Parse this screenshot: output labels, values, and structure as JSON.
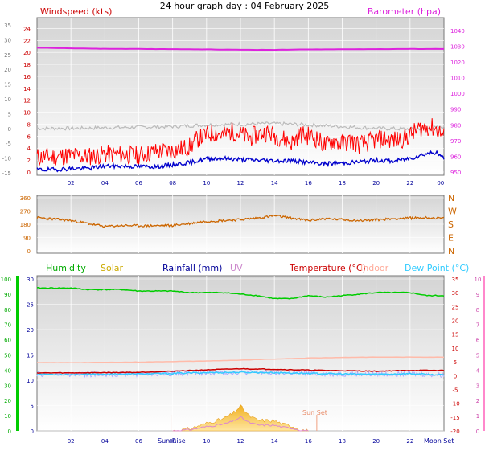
{
  "title": "24 hour graph day : 04 February 2025",
  "colors": {
    "wind": "#ff0000",
    "wind_avg": "#0000cc",
    "baro": "#dd22dd",
    "gust_gray": "#bbbbbb",
    "direction": "#cc6600",
    "humidity": "#00cc00",
    "solar": "#ccaa00",
    "rain": "#000099",
    "uv": "#cc88cc",
    "temperature": "#cc0000",
    "indoor": "#ffbbaa",
    "dew": "#33ccff"
  },
  "chart_data": [
    {
      "type": "line",
      "panel": "wind-baro",
      "labels": {
        "left": "Windspeed (kts)",
        "right": "Barometer (hpa)"
      },
      "x_ticks": [
        "02",
        "04",
        "06",
        "08",
        "10",
        "12",
        "14",
        "16",
        "18",
        "20",
        "22",
        "00"
      ],
      "y_left_outer_ticks": [
        "35",
        "30",
        "25",
        "20",
        "15",
        "10",
        "5",
        "0",
        "-5",
        "-10",
        "-15"
      ],
      "y_left_ticks": [
        "24",
        "22",
        "20",
        "18",
        "16",
        "14",
        "12",
        "10",
        "8",
        "6",
        "4",
        "2",
        "0"
      ],
      "y_right_ticks": [
        "1040",
        "1030",
        "1020",
        "1010",
        "1000",
        "990",
        "980",
        "970",
        "960",
        "950"
      ],
      "ylim_left": [
        0,
        25
      ],
      "ylim_right": [
        950,
        1045
      ],
      "series": [
        {
          "key": "barometer",
          "axis": "right",
          "x": [
            0,
            2,
            4,
            6,
            8,
            10,
            12,
            14,
            16,
            18,
            20,
            22,
            24
          ],
          "values": [
            1029,
            1028.6,
            1028.3,
            1028.2,
            1028.1,
            1027.9,
            1027.7,
            1027.6,
            1027.9,
            1028.0,
            1028.1,
            1028.2,
            1028.2
          ]
        },
        {
          "key": "gray_line",
          "axis": "left",
          "x": [
            0,
            2,
            4,
            6,
            8,
            10,
            12,
            14,
            16,
            18,
            20,
            22,
            23,
            24
          ],
          "values": [
            7.3,
            7.3,
            7.4,
            7.5,
            7.6,
            7.9,
            8.0,
            8.1,
            7.9,
            7.6,
            7.3,
            7.2,
            7.3,
            7.5
          ]
        },
        {
          "key": "gust",
          "axis": "left",
          "x": [
            0,
            1,
            2,
            3,
            4,
            5,
            6,
            7,
            8,
            9,
            9.5,
            10,
            10.5,
            11,
            11.5,
            12,
            12.5,
            13,
            13.5,
            14,
            14.5,
            15,
            15.5,
            16,
            16.5,
            17,
            17.5,
            18,
            18.5,
            19,
            19.5,
            20,
            20.5,
            21,
            21.5,
            22,
            22.5,
            23,
            23.5,
            24
          ],
          "values": [
            2.5,
            2.6,
            2.8,
            2.6,
            3.0,
            2.9,
            2.8,
            3.4,
            3.6,
            4.2,
            5.6,
            6.2,
            6.6,
            6.1,
            6.9,
            6.3,
            5.7,
            6.3,
            6.6,
            6.2,
            5.6,
            4.9,
            6.3,
            6.1,
            5.6,
            4.4,
            5.3,
            4.7,
            5.2,
            4.6,
            4.9,
            5.4,
            5.6,
            5.3,
            5.5,
            6.1,
            7.2,
            7.6,
            7.3,
            6.1
          ]
        },
        {
          "key": "avg_wind",
          "axis": "left",
          "x": [
            0,
            1,
            2,
            3,
            4,
            5,
            6,
            7,
            8,
            9,
            10,
            11,
            12,
            13,
            14,
            15,
            16,
            17,
            18,
            19,
            20,
            21,
            22,
            23,
            23.5,
            24
          ],
          "values": [
            0.4,
            0.4,
            0.6,
            0.6,
            1.0,
            1.0,
            0.9,
            0.9,
            1.2,
            1.6,
            2.2,
            2.3,
            2.1,
            2.0,
            1.9,
            1.9,
            1.6,
            1.4,
            1.5,
            1.7,
            2.0,
            1.8,
            2.3,
            3.1,
            3.3,
            2.3
          ]
        }
      ]
    },
    {
      "type": "line",
      "panel": "direction",
      "y_left_ticks": [
        "360",
        "270",
        "180",
        "90",
        "0"
      ],
      "y_right_ticks": [
        "N",
        "W",
        "S",
        "E",
        "N"
      ],
      "ylim": [
        0,
        360
      ],
      "series": [
        {
          "key": "wind_direction",
          "x": [
            0,
            1,
            2,
            3,
            4,
            5,
            6,
            7,
            8,
            9,
            10,
            11,
            12,
            13,
            14,
            15,
            16,
            17,
            18,
            19,
            20,
            21,
            22,
            23,
            24
          ],
          "values": [
            225,
            215,
            205,
            185,
            165,
            172,
            170,
            170,
            172,
            185,
            200,
            205,
            212,
            222,
            238,
            222,
            205,
            218,
            212,
            205,
            210,
            218,
            222,
            225,
            220
          ]
        }
      ]
    },
    {
      "type": "line",
      "panel": "temperature",
      "labels": {
        "humidity": "Humidity",
        "solar": "Solar",
        "rain": "Rainfall (mm)",
        "uv": "UV",
        "temperature": "Temperature (°C)",
        "indoor": "Indoor",
        "dew": "Dew Point (°C)"
      },
      "annotations": {
        "sunrise": "Sun Rise",
        "sunset": "Sun Set",
        "moonset": "Moon Set"
      },
      "x_ticks": [
        "02",
        "04",
        "06",
        "08",
        "10",
        "12",
        "14",
        "16",
        "18",
        "20",
        "22"
      ],
      "y_humidity_ticks": [
        "100",
        "90",
        "80",
        "70",
        "60",
        "50",
        "40",
        "30",
        "20",
        "10",
        "0"
      ],
      "y_rain_ticks": [
        "30",
        "25",
        "20",
        "15",
        "10",
        "5",
        "0"
      ],
      "y_temp_ticks": [
        "35",
        "30",
        "25",
        "20",
        "15",
        "10",
        "5",
        "0",
        "-5",
        "-10",
        "-15",
        "-20"
      ],
      "y_uv_ticks": [
        "10",
        "9",
        "8",
        "7",
        "6",
        "5",
        "4",
        "3",
        "2",
        "1",
        "0"
      ],
      "ylim_temperature": [
        -20,
        35
      ],
      "series": [
        {
          "key": "humidity",
          "axis": "humidity",
          "x": [
            0,
            1,
            2,
            3,
            4,
            5,
            6,
            7,
            8,
            9,
            10,
            11,
            12,
            13,
            14,
            15,
            16,
            17,
            18,
            19,
            20,
            21,
            22,
            23,
            24
          ],
          "values": [
            94,
            94,
            94,
            93,
            93,
            93,
            92,
            92,
            92,
            91,
            91,
            91,
            90,
            89,
            87,
            87,
            89,
            88,
            89,
            90,
            91,
            91,
            91,
            89,
            89
          ]
        },
        {
          "key": "indoor",
          "axis": "temperature",
          "x": [
            0,
            2,
            4,
            6,
            8,
            10,
            12,
            14,
            16,
            18,
            20,
            22,
            24
          ],
          "values": [
            4.7,
            4.7,
            4.8,
            4.9,
            5.1,
            5.3,
            5.6,
            6.0,
            6.4,
            6.6,
            6.7,
            6.7,
            6.7
          ]
        },
        {
          "key": "temperature",
          "axis": "temperature",
          "x": [
            0,
            2,
            4,
            6,
            8,
            10,
            12,
            14,
            16,
            18,
            20,
            22,
            24
          ],
          "values": [
            1.0,
            1.0,
            1.1,
            1.2,
            1.6,
            2.1,
            2.5,
            2.3,
            2.0,
            1.8,
            1.6,
            1.9,
            1.9
          ]
        },
        {
          "key": "dew_point",
          "axis": "temperature",
          "x": [
            0,
            2,
            4,
            6,
            8,
            10,
            12,
            14,
            16,
            18,
            20,
            22,
            24
          ],
          "values": [
            0.5,
            0.4,
            0.5,
            0.6,
            0.8,
            1.1,
            1.2,
            1.1,
            0.8,
            0.6,
            0.5,
            0.7,
            0.2
          ]
        },
        {
          "key": "solar",
          "axis": "rain",
          "x": [
            8,
            9,
            10,
            11,
            11.5,
            12,
            12.5,
            13,
            14,
            14.5,
            15,
            15.5,
            16
          ],
          "values": [
            0,
            0.4,
            1.5,
            2.4,
            3.3,
            4.9,
            3.0,
            2.1,
            2.0,
            1.3,
            1.0,
            0.3,
            0
          ]
        }
      ]
    }
  ]
}
